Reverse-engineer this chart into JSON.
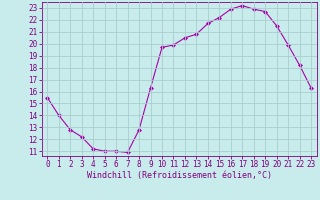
{
  "x": [
    0,
    1,
    2,
    3,
    4,
    5,
    6,
    7,
    8,
    9,
    10,
    11,
    12,
    13,
    14,
    15,
    16,
    17,
    18,
    19,
    20,
    21,
    22,
    23
  ],
  "y": [
    15.5,
    14.0,
    12.8,
    12.2,
    11.2,
    11.0,
    11.0,
    10.9,
    12.8,
    16.3,
    19.7,
    19.9,
    20.5,
    20.8,
    21.7,
    22.2,
    22.9,
    23.2,
    22.9,
    22.7,
    21.5,
    19.9,
    18.2,
    16.3
  ],
  "line_color": "#aa00aa",
  "marker": "D",
  "marker_size": 2.0,
  "bg_color": "#c8ecec",
  "grid_color": "#aacccc",
  "xlabel": "Windchill (Refroidissement éolien,°C)",
  "xlabel_color": "#800080",
  "ylabel_ticks": [
    11,
    12,
    13,
    14,
    15,
    16,
    17,
    18,
    19,
    20,
    21,
    22,
    23
  ],
  "xlim": [
    -0.5,
    23.5
  ],
  "ylim": [
    10.6,
    23.5
  ],
  "tick_label_color": "#800080",
  "axis_color": "#800080",
  "tick_fontsize": 5.5,
  "xlabel_fontsize": 6.0
}
